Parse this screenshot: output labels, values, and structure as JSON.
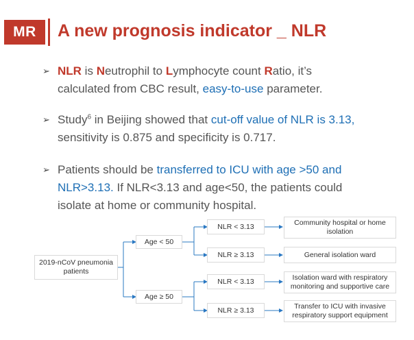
{
  "header": {
    "badge": "MR",
    "title": "A new prognosis indicator _ NLR"
  },
  "bullets": [
    {
      "l1_a": "NLR",
      "l1_b": " is ",
      "l1_c": "N",
      "l1_d": "eutrophil to ",
      "l1_e": "L",
      "l1_f": "ymphocyte count ",
      "l1_g": "R",
      "l1_h": "atio, it’s",
      "l2_a": "calculated from CBC result, ",
      "l2_b": "easy-to-use",
      "l2_c": " parameter."
    },
    {
      "l1_a": "Study",
      "l1_sup": "6",
      "l1_b": " in Beijing showed that ",
      "l1_c": "cut-off value of NLR is 3.13,",
      "l2": "sensitivity is 0.875 and specificity is 0.717."
    },
    {
      "l1_a": "Patients should be ",
      "l1_b": "transferred to ICU with age >50 and",
      "l2_a": "NLR>3.13.",
      "l2_b": " If NLR<3.13 and age<50, the patients could",
      "l3": "isolate at home or community hospital."
    }
  ],
  "flowchart": {
    "root": "2019-nCoV pneumonia patients",
    "age_low": "Age < 50",
    "age_high": "Age ≥ 50",
    "nlr_low_1": "NLR < 3.13",
    "nlr_high_1": "NLR ≥ 3.13",
    "nlr_low_2": "NLR < 3.13",
    "nlr_high_2": "NLR ≥ 3.13",
    "outcome_1": "Community hospital or home isolation",
    "outcome_2": "General isolation ward",
    "outcome_3": "Isolation ward with respiratory monitoring and supportive care",
    "outcome_4": "Transfer to ICU with invasive respiratory support equipment"
  },
  "colors": {
    "accent": "#c0392b",
    "link": "#1e6fb5",
    "line": "#2a78c2"
  }
}
